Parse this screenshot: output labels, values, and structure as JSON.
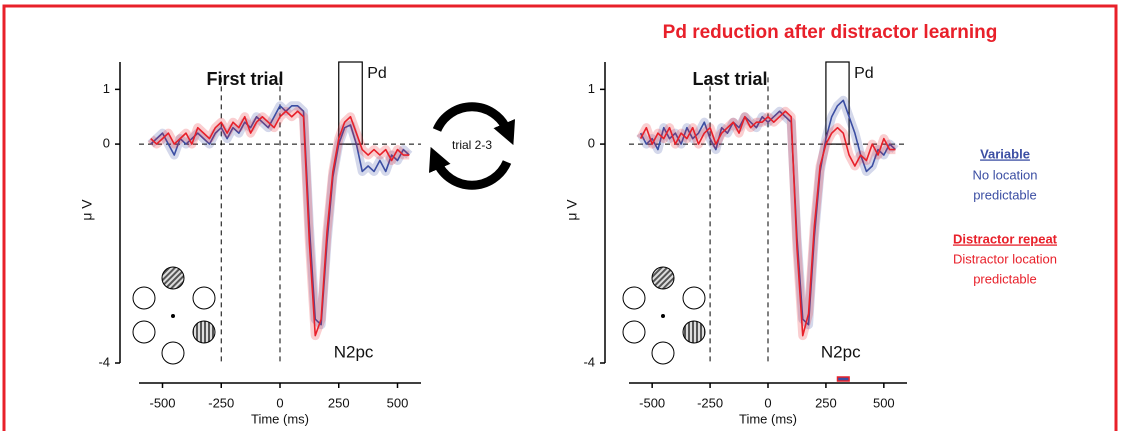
{
  "title": "Pd reduction after distractor learning",
  "annotation": "trial 2-3",
  "legend_notes": [
    [
      "No location",
      "predictable"
    ],
    [
      "Distractor location",
      "predictable"
    ]
  ],
  "chart_data": [
    {
      "type": "line",
      "title": "First trial",
      "xlabel": "Time (ms)",
      "ylabel": "μ V",
      "x": [
        -550,
        -525,
        -500,
        -475,
        -450,
        -425,
        -400,
        -375,
        -350,
        -325,
        -300,
        -275,
        -250,
        -225,
        -200,
        -175,
        -150,
        -125,
        -100,
        -75,
        -50,
        -25,
        0,
        25,
        50,
        75,
        100,
        125,
        150,
        175,
        200,
        225,
        250,
        275,
        300,
        325,
        350,
        375,
        400,
        425,
        450,
        475,
        500,
        525,
        550
      ],
      "series": [
        {
          "name": "Variable",
          "color": "#3b4ea3",
          "values": [
            0.0,
            0.1,
            0.2,
            0.0,
            -0.2,
            0.1,
            0.0,
            0.1,
            0.2,
            0.1,
            0.0,
            0.2,
            0.3,
            0.1,
            0.3,
            0.2,
            0.4,
            0.3,
            0.5,
            0.4,
            0.3,
            0.5,
            0.7,
            0.6,
            0.7,
            0.7,
            0.6,
            -1.5,
            -3.2,
            -3.3,
            -1.8,
            -0.6,
            0.0,
            0.3,
            0.35,
            0.0,
            -0.5,
            -0.4,
            -0.5,
            -0.3,
            -0.5,
            -0.2,
            -0.3,
            -0.1,
            -0.2
          ]
        },
        {
          "name": "Distractor repeat",
          "color": "#e8202a",
          "values": [
            0.1,
            0.0,
            0.1,
            0.2,
            0.0,
            0.1,
            0.2,
            0.0,
            0.3,
            0.2,
            0.1,
            0.3,
            0.4,
            0.2,
            0.4,
            0.3,
            0.5,
            0.2,
            0.4,
            0.5,
            0.4,
            0.3,
            0.5,
            0.6,
            0.5,
            0.6,
            0.5,
            -1.8,
            -3.5,
            -3.2,
            -1.6,
            -0.5,
            0.1,
            0.4,
            0.5,
            0.2,
            -0.1,
            -0.2,
            -0.1,
            -0.2,
            -0.1,
            -0.3,
            -0.1,
            -0.2,
            -0.2
          ]
        }
      ],
      "xlim": [
        -600,
        600
      ],
      "ylim": [
        -4,
        1.5
      ],
      "xticks": [
        -500,
        -250,
        0,
        250,
        500
      ],
      "yticks": [
        -4,
        0,
        1
      ],
      "vlines": [
        -250,
        0
      ],
      "hline": 0,
      "pd_window": [
        250,
        350
      ],
      "pd_label": "Pd",
      "peak_label": "N2pc"
    },
    {
      "type": "line",
      "title": "Last trial",
      "xlabel": "Time (ms)",
      "ylabel": "μ V",
      "x": [
        -550,
        -525,
        -500,
        -475,
        -450,
        -425,
        -400,
        -375,
        -350,
        -325,
        -300,
        -275,
        -250,
        -225,
        -200,
        -175,
        -150,
        -125,
        -100,
        -75,
        -50,
        -25,
        0,
        25,
        50,
        75,
        100,
        125,
        150,
        175,
        200,
        225,
        250,
        275,
        300,
        325,
        350,
        375,
        400,
        425,
        450,
        475,
        500,
        525,
        550
      ],
      "series": [
        {
          "color": "#3b4ea3",
          "values": [
            0.2,
            0.0,
            0.1,
            -0.1,
            0.3,
            0.1,
            0.2,
            0.0,
            0.3,
            0.1,
            0.2,
            0.4,
            0.1,
            -0.1,
            0.3,
            0.2,
            0.4,
            0.3,
            0.5,
            0.4,
            0.3,
            0.5,
            0.4,
            0.5,
            0.6,
            0.5,
            0.4,
            -1.7,
            -3.2,
            -3.3,
            -1.7,
            -0.5,
            0.1,
            0.5,
            0.7,
            0.8,
            0.5,
            0.2,
            -0.2,
            -0.5,
            -0.4,
            -0.1,
            -0.2,
            0.0,
            -0.1
          ]
        },
        {
          "color": "#e8202a",
          "values": [
            0.1,
            0.3,
            0.0,
            0.2,
            0.1,
            0.3,
            0.0,
            0.2,
            0.1,
            0.3,
            0.0,
            0.2,
            0.3,
            0.0,
            0.2,
            0.3,
            0.4,
            0.2,
            0.5,
            0.3,
            0.4,
            0.4,
            0.5,
            0.4,
            0.5,
            0.6,
            0.5,
            -1.9,
            -3.5,
            -3.1,
            -1.5,
            -0.4,
            0.0,
            0.2,
            0.3,
            0.2,
            -0.2,
            -0.4,
            -0.2,
            -0.3,
            0.0,
            -0.2,
            0.1,
            -0.1,
            -0.1
          ]
        }
      ],
      "xlim": [
        -600,
        600
      ],
      "ylim": [
        -4,
        1.5
      ],
      "xticks": [
        -500,
        -250,
        0,
        250,
        500
      ],
      "yticks": [
        -4,
        0,
        1
      ],
      "vlines": [
        -250,
        0
      ],
      "hline": 0,
      "pd_window": [
        250,
        350
      ],
      "pd_label": "Pd",
      "peak_label": "N2pc",
      "significance": [
        300,
        350
      ]
    }
  ]
}
